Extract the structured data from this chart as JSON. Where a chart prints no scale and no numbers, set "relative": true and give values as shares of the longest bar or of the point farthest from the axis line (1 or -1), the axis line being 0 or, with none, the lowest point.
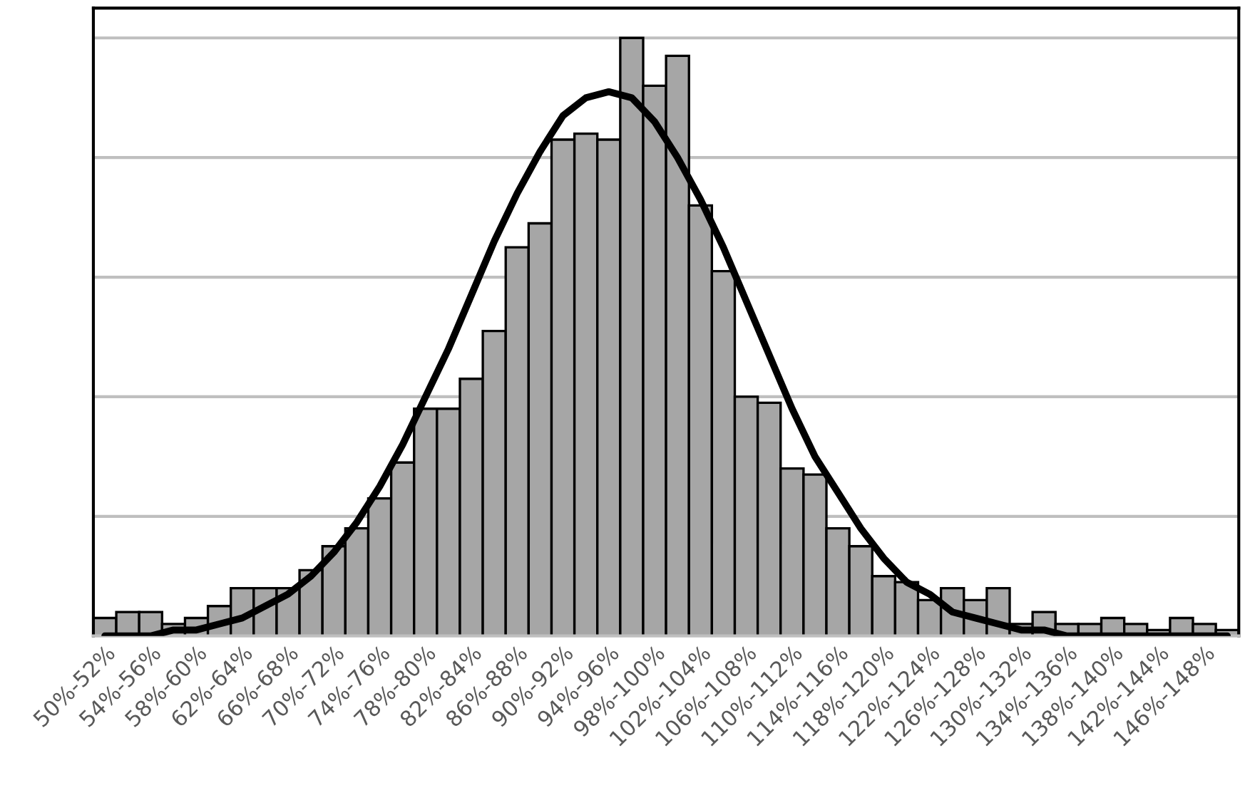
{
  "chart_data": {
    "type": "bar",
    "relative": true,
    "grid": "y",
    "categories": [
      "50%-52%",
      null,
      "54%-56%",
      null,
      "58%-60%",
      null,
      "62%-64%",
      null,
      "66%-68%",
      null,
      "70%-72%",
      null,
      "74%-76%",
      null,
      "78%-80%",
      null,
      "82%-84%",
      null,
      "86%-88%",
      null,
      "90%-92%",
      null,
      "94%-96%",
      null,
      "98%-100%",
      null,
      "102%-104%",
      null,
      "106%-108%",
      null,
      "110%-112%",
      null,
      "114%-116%",
      null,
      "118%-120%",
      null,
      "122%-124%",
      null,
      "126%-128%",
      null,
      "130%-132%",
      null,
      "134%-136%",
      null,
      "138%-140%",
      null,
      "142%-144%",
      null,
      "146%-148%",
      null
    ],
    "series": [
      {
        "color": "#a6a6a6",
        "values": [
          0.03,
          0.04,
          0.04,
          0.02,
          0.03,
          0.05,
          0.08,
          0.08,
          0.08,
          0.11,
          0.15,
          0.18,
          0.23,
          0.29,
          0.38,
          0.38,
          0.43,
          0.51,
          0.65,
          0.69,
          0.83,
          0.84,
          0.83,
          1.0,
          0.92,
          0.97,
          0.72,
          0.61,
          0.4,
          0.39,
          0.28,
          0.27,
          0.18,
          0.15,
          0.1,
          0.09,
          0.06,
          0.08,
          0.06,
          0.08,
          0.02,
          0.04,
          0.02,
          0.02,
          0.03,
          0.02,
          0.01,
          0.03,
          0.02,
          0.01
        ]
      },
      {
        "type": "line",
        "color": "#000000",
        "values": [
          0.0,
          0.0,
          0.0,
          0.01,
          0.01,
          0.02,
          0.03,
          0.05,
          0.07,
          0.1,
          0.14,
          0.19,
          0.25,
          0.32,
          0.4,
          0.48,
          0.57,
          0.66,
          0.74,
          0.81,
          0.87,
          0.9,
          0.91,
          0.9,
          0.86,
          0.8,
          0.73,
          0.65,
          0.56,
          0.47,
          0.38,
          0.3,
          0.24,
          0.18,
          0.13,
          0.09,
          0.07,
          0.04,
          0.03,
          0.02,
          0.01,
          0.01,
          0.0,
          0.0,
          0.0,
          0.0,
          0.0,
          0.0,
          0.0,
          0.0
        ]
      }
    ]
  }
}
